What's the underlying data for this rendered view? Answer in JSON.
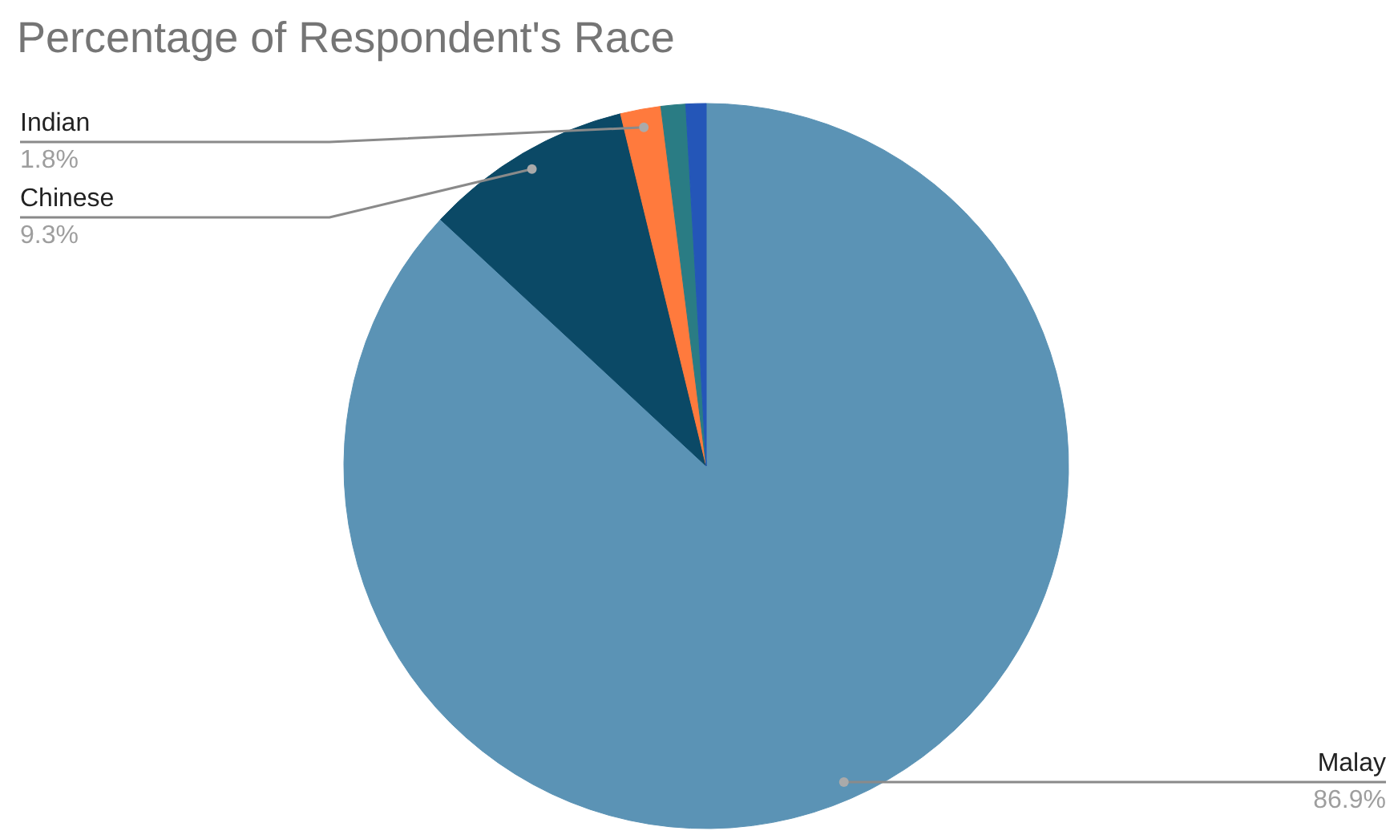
{
  "chart_data": {
    "type": "pie",
    "title": "Percentage of Respondent's Race",
    "categories": [
      "Malay",
      "Chinese",
      "Indian",
      null,
      null
    ],
    "values": [
      86.9,
      9.3,
      1.8,
      1.1,
      0.9
    ],
    "colors": [
      "#5b93b5",
      "#0b4966",
      "#ff7a3d",
      "#2a7c84",
      "#2456b8"
    ],
    "value_labels": [
      "86.9%",
      "9.3%",
      "1.8%",
      null,
      null
    ],
    "legend": false
  }
}
